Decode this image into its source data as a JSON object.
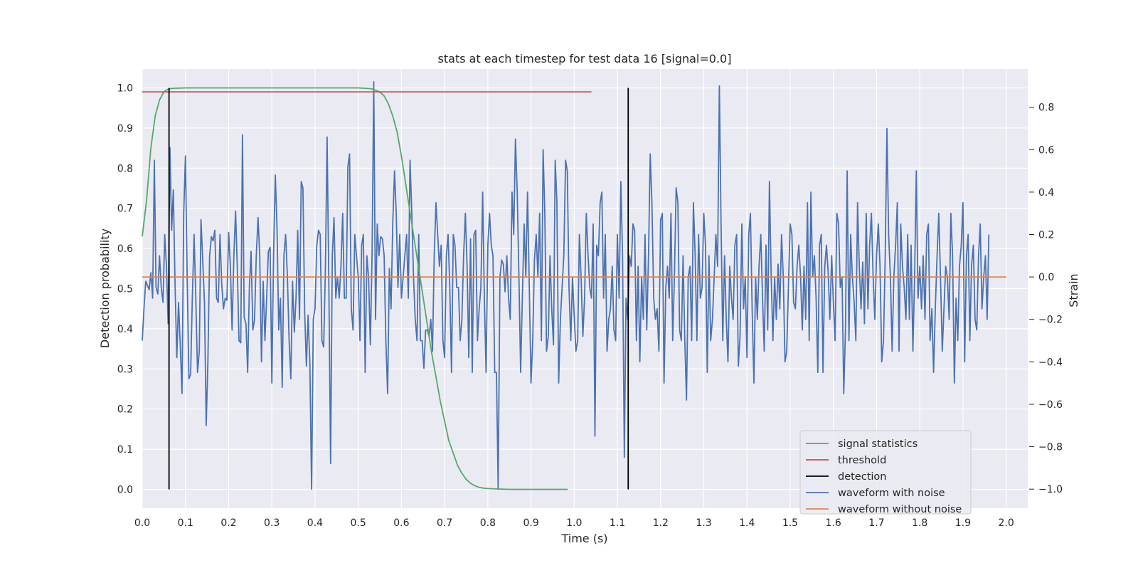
{
  "chart_data": {
    "type": "line",
    "title": "stats at each timestep for test data 16 [signal=0.0]",
    "xlabel": "Time (s)",
    "ylabel": "Detection probability",
    "y2label": "Strain",
    "xlim": [
      0.0,
      2.05
    ],
    "ylim": [
      -0.047,
      1.047
    ],
    "y2lim": [
      -1.09,
      0.98
    ],
    "x_ticks": [
      0.0,
      0.1,
      0.2,
      0.3,
      0.4,
      0.5,
      0.6,
      0.7,
      0.8,
      0.9,
      1.0,
      1.1,
      1.2,
      1.3,
      1.4,
      1.5,
      1.6,
      1.7,
      1.8,
      1.9,
      2.0
    ],
    "x_tick_labels": [
      "0.0",
      "0.1",
      "0.2",
      "0.3",
      "0.4",
      "0.5",
      "0.6",
      "0.7",
      "0.8",
      "0.9",
      "1.0",
      "1.1",
      "1.2",
      "1.3",
      "1.4",
      "1.5",
      "1.6",
      "1.7",
      "1.8",
      "1.9",
      "2.0"
    ],
    "y_ticks": [
      0.0,
      0.1,
      0.2,
      0.3,
      0.4,
      0.5,
      0.6,
      0.7,
      0.8,
      0.9,
      1.0
    ],
    "y_tick_labels": [
      "0.0",
      "0.1",
      "0.2",
      "0.3",
      "0.4",
      "0.5",
      "0.6",
      "0.7",
      "0.8",
      "0.9",
      "1.0"
    ],
    "y2_ticks": [
      -1.0,
      -0.8,
      -0.6,
      -0.4,
      -0.2,
      0.0,
      0.2,
      0.4,
      0.6,
      0.8
    ],
    "y2_tick_labels": [
      "−1.0",
      "−0.8",
      "−0.6",
      "−0.4",
      "−0.2",
      "0.0",
      "0.2",
      "0.4",
      "0.6",
      "0.8"
    ],
    "grid": true,
    "legend_position": "bottom-right",
    "colors": {
      "background": "#eaeaf2",
      "grid": "#ffffff",
      "signal_statistics": "#55a868",
      "threshold": "#c44e52",
      "detection": "#000000",
      "waveform_with_noise": "#4c72b0",
      "waveform_without_noise": "#dd8452"
    },
    "series": [
      {
        "name": "signal statistics",
        "axis": "left",
        "x": [
          0.0,
          0.01,
          0.02,
          0.03,
          0.04,
          0.05,
          0.06,
          0.07,
          0.1,
          0.2,
          0.3,
          0.4,
          0.5,
          0.53,
          0.55,
          0.56,
          0.57,
          0.58,
          0.59,
          0.6,
          0.61,
          0.62,
          0.63,
          0.64,
          0.65,
          0.66,
          0.67,
          0.68,
          0.69,
          0.7,
          0.71,
          0.72,
          0.73,
          0.74,
          0.75,
          0.76,
          0.77,
          0.78,
          0.79,
          0.8,
          0.82,
          0.85,
          0.9,
          0.985
        ],
        "y": [
          0.63,
          0.72,
          0.85,
          0.93,
          0.97,
          0.99,
          0.997,
          0.999,
          1.0,
          1.0,
          1.0,
          1.0,
          1.0,
          0.998,
          0.99,
          0.98,
          0.96,
          0.93,
          0.89,
          0.83,
          0.76,
          0.69,
          0.62,
          0.55,
          0.48,
          0.41,
          0.34,
          0.28,
          0.22,
          0.17,
          0.12,
          0.09,
          0.06,
          0.04,
          0.025,
          0.015,
          0.009,
          0.005,
          0.003,
          0.002,
          0.001,
          0.0,
          0.0,
          0.0
        ]
      },
      {
        "name": "threshold",
        "axis": "left",
        "x": [
          0.0,
          1.04
        ],
        "y": [
          0.99,
          0.99
        ]
      },
      {
        "name": "waveform without noise",
        "axis": "right",
        "x": [
          0.0,
          2.0
        ],
        "y": [
          0.0,
          0.0
        ]
      }
    ],
    "detections": {
      "name": "detection",
      "x": [
        0.062,
        1.125
      ],
      "y_range": [
        0.0,
        1.0
      ]
    },
    "waveform_with_noise": {
      "name": "waveform with noise",
      "axis": "right",
      "x_start": 0.0,
      "x_step": 0.004,
      "y": [
        -0.3,
        -0.15,
        -0.02,
        -0.04,
        -0.06,
        0.02,
        -0.1,
        0.55,
        -0.05,
        -0.08,
        0.1,
        -0.05,
        -0.12,
        0.2,
        0.05,
        -0.22,
        0.61,
        0.22,
        0.41,
        -0.05,
        -0.38,
        -0.12,
        -0.32,
        -0.55,
        0.3,
        0.57,
        -0.01,
        -0.48,
        -0.46,
        -0.1,
        0.2,
        -0.1,
        -0.45,
        -0.35,
        0.27,
        0.08,
        -0.12,
        -0.7,
        -0.4,
        0.1,
        0.19,
        0.17,
        0.22,
        -0.1,
        -0.12,
        0.2,
        -0.03,
        -0.15,
        -0.1,
        -0.11,
        0.21,
        0.05,
        -0.25,
        0.1,
        0.31,
        0.05,
        -0.3,
        -0.31,
        0.67,
        -0.19,
        -0.22,
        -0.45,
        -0.05,
        0.12,
        -0.25,
        -0.2,
        0.1,
        0.28,
        0.1,
        -0.4,
        -0.02,
        -0.3,
        -0.1,
        0.12,
        0.14,
        -0.5,
        0.1,
        0.48,
        0.23,
        -0.25,
        -0.1,
        -0.52,
        0.1,
        0.2,
        0.0,
        -0.3,
        -0.48,
        -0.02,
        -0.26,
        -0.1,
        0.22,
        -0.2,
        0.45,
        0.42,
        -0.17,
        -0.42,
        -0.18,
        -0.4,
        -1.0,
        -0.2,
        -0.15,
        0.15,
        0.22,
        0.2,
        -0.3,
        -0.33,
        0.04,
        0.66,
        -0.05,
        -0.88,
        0.1,
        0.28,
        -0.1,
        0.0,
        -0.1,
        0.05,
        0.3,
        -0.1,
        -0.1,
        0.52,
        0.58,
        -0.15,
        -0.25,
        0.2,
        0.1,
        0.0,
        -0.3,
        0.15,
        0.2,
        -0.45,
        0.1,
        0.0,
        -0.32,
        0.1,
        0.92,
        -0.2,
        0.25,
        0.1,
        0.19,
        0.18,
        0.1,
        -0.3,
        -0.55,
        0.04,
        -0.15,
        0.25,
        0.5,
        0.3,
        -0.05,
        0.2,
        -0.1,
        0.0,
        0.1,
        0.2,
        -0.1,
        0.55,
        0.3,
        0.0,
        -0.2,
        -0.3,
        0.2,
        -0.3,
        -0.3,
        -0.43,
        -0.25,
        -0.25,
        -0.28,
        -0.2,
        -0.35,
        0.1,
        0.35,
        0.2,
        0.05,
        0.15,
        -0.3,
        -0.38,
        0.1,
        0.2,
        -0.05,
        -0.45,
        0.2,
        0.15,
        -0.05,
        -0.05,
        -0.3,
        -0.2,
        0.1,
        0.3,
        0.05,
        -0.38,
        0.18,
        -0.45,
        0.2,
        0.22,
        -0.3,
        -0.15,
        -0.05,
        0.4,
        -0.1,
        -0.45,
        0.15,
        0.3,
        0.15,
        0.1,
        -0.45,
        -0.45,
        -1.0,
        0.0,
        0.08,
        0.06,
        -0.07,
        0.1,
        -0.1,
        -0.2,
        0.4,
        0.2,
        0.65,
        0.4,
        0.0,
        -0.45,
        -0.1,
        0.25,
        0.0,
        0.4,
        -0.05,
        -0.5,
        -0.3,
        0.08,
        0.2,
        0.0,
        0.3,
        -0.3,
        0.6,
        0.3,
        -0.35,
        -0.28,
        0.1,
        -0.15,
        -0.32,
        0.55,
        0.35,
        -0.5,
        -0.2,
        -0.05,
        0.1,
        0.55,
        0.5,
        -0.05,
        -0.3,
        0.0,
        -0.18,
        -0.35,
        -0.3,
        0.2,
        0.0,
        -0.28,
        -0.1,
        0.3,
        0.1,
        -0.05,
        -0.1,
        0.25,
        -0.75,
        0.15,
        0.1,
        0.35,
        0.4,
        -0.1,
        0.2,
        -0.35,
        -0.2,
        -0.15,
        0.05,
        -0.25,
        -0.3,
        0.2,
        -0.1,
        0.45,
        0.1,
        -0.85,
        -0.1,
        -0.2,
        0.1,
        0.05,
        0.25,
        0.22,
        -0.3,
        0.05,
        -0.4,
        0.0,
        -0.2,
        0.2,
        -0.25,
        0.1,
        0.58,
        0.35,
        -0.1,
        -0.2,
        -0.15,
        -0.35,
        0.27,
        0.3,
        -0.5,
        -0.05,
        0.05,
        -0.1,
        0.3,
        -0.3,
        0.0,
        0.42,
        0.35,
        -0.25,
        -0.3,
        0.1,
        -0.3,
        -0.58,
        0.0,
        0.05,
        -0.3,
        0.35,
        0.1,
        -0.3,
        0.2,
        -0.1,
        -0.05,
        0.3,
        0.15,
        -0.45,
        0.1,
        -0.3,
        -0.2,
        0.0,
        0.2,
        0.05,
        0.9,
        0.25,
        -0.3,
        0.1,
        -0.2,
        -0.4,
        0.05,
        -0.1,
        -0.2,
        0.15,
        0.2,
        -0.42,
        -0.28,
        0.25,
        -0.15,
        0.0,
        -0.38,
        0.2,
        0.3,
        -0.15,
        -0.5,
        0.0,
        -0.2,
        0.05,
        0.2,
        -0.1,
        -0.35,
        0.15,
        -0.25,
        0.45,
        0.0,
        -0.3,
        0.0,
        -0.2,
        0.06,
        -0.15,
        0.2,
        0.0,
        -0.4,
        -0.35,
        -0.05,
        0.25,
        0.2,
        -0.12,
        -0.15,
        0.05,
        0.15,
        0.0,
        -0.25,
        0.05,
        -0.2,
        0.35,
        -0.3,
        0.4,
        0.0,
        0.1,
        -0.1,
        -0.45,
        0.15,
        0.2,
        -0.45,
        0.05,
        0.15,
        0.02,
        -0.2,
        0.1,
        -0.12,
        -0.3,
        0.3,
        0.25,
        -0.05,
        0.0,
        -0.55,
        -0.25,
        0.5,
        -0.3,
        0.2,
        0.0,
        -0.12,
        -0.3,
        0.35,
        0.05,
        -0.15,
        0.07,
        -0.22,
        0.3,
        -0.15,
        0.15,
        0.3,
        0.0,
        -0.2,
        0.1,
        0.25,
        0.05,
        -0.4,
        -0.3,
        0.1,
        0.7,
        0.2,
        0.0,
        -0.35,
        0.0,
        0.15,
        0.35,
        -0.35,
        0.25,
        0.05,
        -0.05,
        -0.2,
        0.2,
        -0.2,
        0.15,
        -0.35,
        0.0,
        0.5,
        -0.1,
        0.05,
        -0.15,
        0.1,
        -0.2,
        0.2,
        0.25,
        -0.3,
        -0.15,
        -0.45,
        -0.15,
        0.1,
        0.3,
        0.0,
        -0.35,
        -0.15,
        0.05,
        0.0,
        -0.2,
        0.3,
        0.1,
        -0.5,
        -0.1,
        -0.3,
        0.05,
        0.15,
        0.35,
        -0.4,
        0.1,
        0.2,
        -0.3,
        0.05,
        0.15,
        -0.2,
        -0.25,
        0.1,
        0.25,
        -0.15,
        0.0,
        0.1,
        -0.2,
        0.2
      ]
    },
    "legend": [
      "signal statistics",
      "threshold",
      "detection",
      "waveform with noise",
      "waveform without noise"
    ]
  }
}
